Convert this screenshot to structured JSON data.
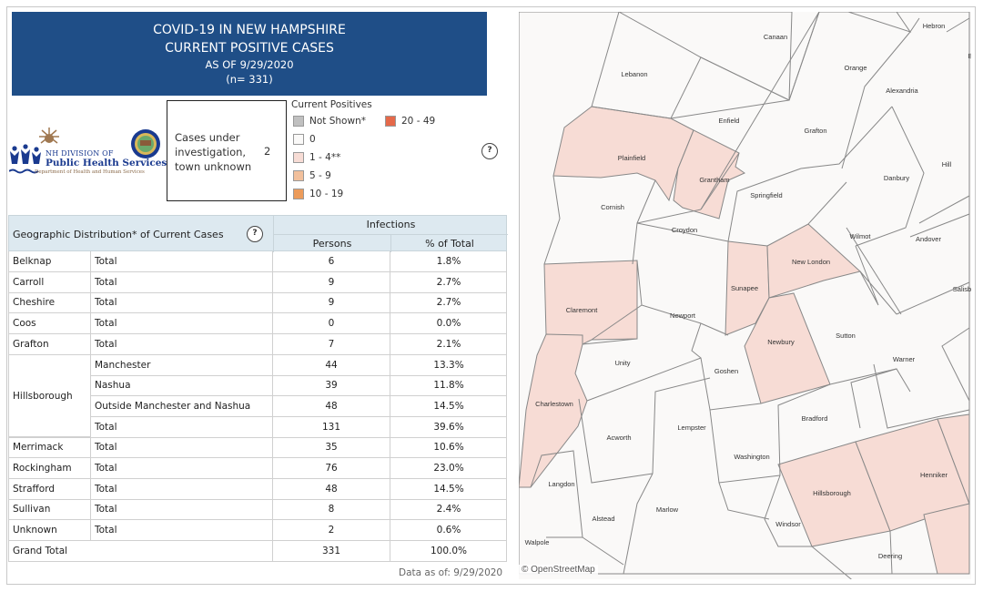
{
  "header": {
    "line1": "COVID-19 IN NEW HAMPSHIRE",
    "line2": "CURRENT POSITIVE CASES",
    "line3": "AS OF 9/29/2020",
    "line4": "(n= 331)",
    "bg_color": "#1f4e87"
  },
  "logo": {
    "line1": "NH DIVISION OF",
    "line2": "Public Health Services",
    "line3": "Department of Health and Human Services"
  },
  "investigation": {
    "label": "Cases under investigation, town unknown",
    "value": "2"
  },
  "legend": {
    "title": "Current Positives",
    "items": [
      {
        "label": "Not Shown*",
        "color": "#c0c0c0"
      },
      {
        "label": "0",
        "color": "#faf9f8"
      },
      {
        "label": "1 - 4**",
        "color": "#f7dcd5"
      },
      {
        "label": "5 - 9",
        "color": "#f2c09c"
      },
      {
        "label": "10 - 19",
        "color": "#ec9b5a"
      },
      {
        "label": "20 - 49",
        "color": "#e5694a"
      }
    ],
    "help_icon": "?"
  },
  "table": {
    "title": "Geographic Distribution* of Current Cases",
    "help_icon": "?",
    "group_header": "Infections",
    "col_persons": "Persons",
    "col_pct": "% of Total",
    "rows": [
      {
        "county": "Belknap",
        "sub": "Total",
        "persons": "6",
        "pct": "1.8%"
      },
      {
        "county": "Carroll",
        "sub": "Total",
        "persons": "9",
        "pct": "2.7%"
      },
      {
        "county": "Cheshire",
        "sub": "Total",
        "persons": "9",
        "pct": "2.7%"
      },
      {
        "county": "Coos",
        "sub": "Total",
        "persons": "0",
        "pct": "0.0%"
      },
      {
        "county": "Grafton",
        "sub": "Total",
        "persons": "7",
        "pct": "2.1%"
      },
      {
        "county": "",
        "sub": "Manchester",
        "persons": "44",
        "pct": "13.3%"
      },
      {
        "county": "",
        "sub": "Nashua",
        "persons": "39",
        "pct": "11.8%"
      },
      {
        "county": "",
        "sub": "Outside Manchester and Nashua",
        "persons": "48",
        "pct": "14.5%"
      },
      {
        "county": "",
        "sub": "Total",
        "persons": "131",
        "pct": "39.6%"
      },
      {
        "county": "Merrimack",
        "sub": "Total",
        "persons": "35",
        "pct": "10.6%"
      },
      {
        "county": "Rockingham",
        "sub": "Total",
        "persons": "76",
        "pct": "23.0%"
      },
      {
        "county": "Strafford",
        "sub": "Total",
        "persons": "48",
        "pct": "14.5%"
      },
      {
        "county": "Sullivan",
        "sub": "Total",
        "persons": "8",
        "pct": "2.4%"
      },
      {
        "county": "Unknown",
        "sub": "Total",
        "persons": "2",
        "pct": "0.6%"
      }
    ],
    "hillsborough_label": "Hillsborough",
    "grand_total": {
      "label": "Grand Total",
      "persons": "331",
      "pct": "100.0%"
    }
  },
  "footer": {
    "data_as_of": "Data as of:  9/29/2020",
    "osm": "© OpenStreetMap"
  },
  "map": {
    "towns": [
      "Canaan",
      "Hebron",
      "Orange",
      "Alexandria",
      "Lebanon",
      "Enfield",
      "Grafton",
      "Plainfield",
      "Grantham",
      "Springfield",
      "Danbury",
      "Hill",
      "Cornish",
      "Croydon",
      "Wilmot",
      "Andover",
      "New London",
      "Salisb",
      "Sunapee",
      "Claremont",
      "Newport",
      "Sutton",
      "Newbury",
      "Warner",
      "Unity",
      "Goshen",
      "Charlestown",
      "Bradford",
      "Acworth",
      "Lempster",
      "Washington",
      "Henniker",
      "Hillsborough",
      "Langdon",
      "Alstead",
      "Marlow",
      "Windsor",
      "Walpole",
      "Deering",
      "B"
    ],
    "fill_zero": "#faf9f8",
    "fill_low": "#f7dcd5"
  }
}
